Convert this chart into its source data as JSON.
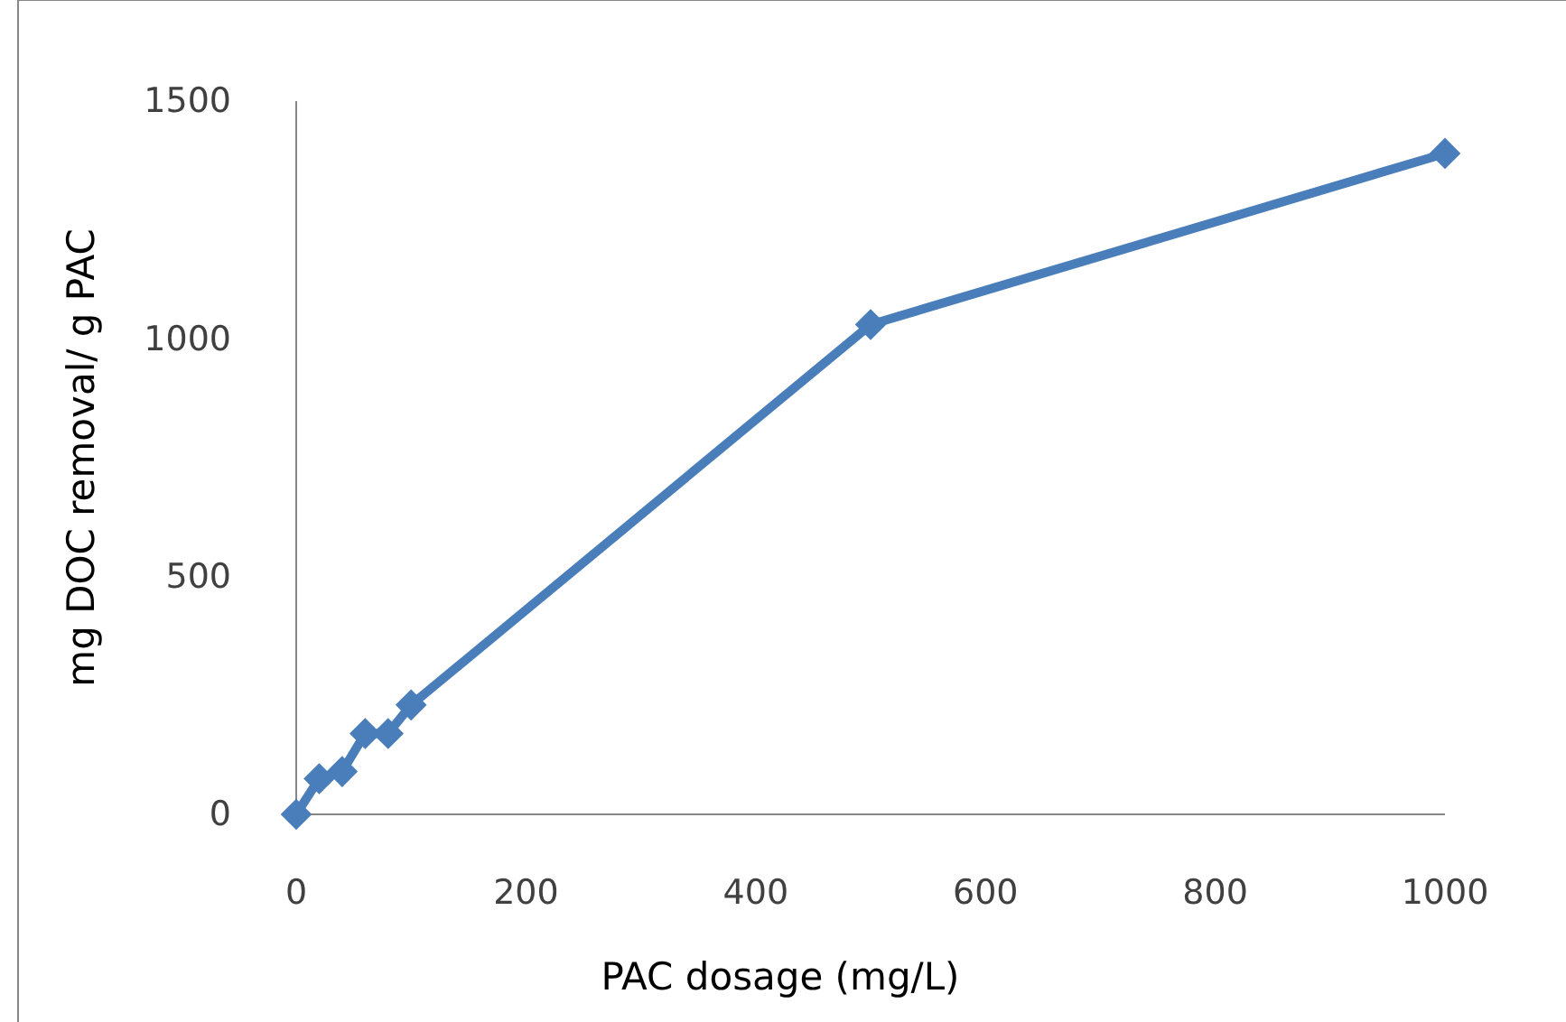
{
  "chart_data": {
    "type": "line",
    "xlabel": "PAC dosage (mg/L)",
    "ylabel": "mg DOC removal/ g PAC",
    "x": [
      0,
      20,
      40,
      60,
      80,
      100,
      500,
      1000
    ],
    "series": [
      {
        "color": "#4a7ebb",
        "values": [
          0,
          75,
          90,
          170,
          170,
          230,
          1030,
          1390
        ]
      }
    ],
    "xlim": [
      0,
      1000
    ],
    "xticks": [
      0,
      200,
      400,
      600,
      800,
      1000
    ],
    "ylim": [
      0,
      1500
    ],
    "yticks": [
      0,
      500,
      1000,
      1500
    ],
    "grid": false,
    "marker": "diamond",
    "line_style": "solid"
  }
}
